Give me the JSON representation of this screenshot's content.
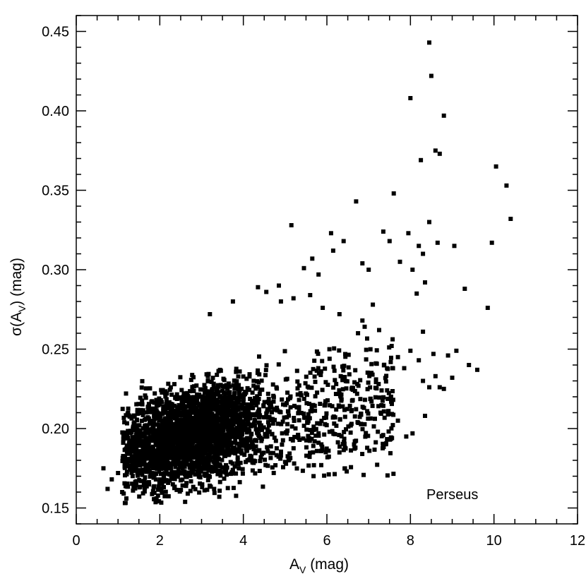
{
  "chart_data": {
    "type": "scatter",
    "title": "",
    "xlabel": "A",
    "xlabel_sub": "V",
    "xlabel_suffix": " (mag)",
    "ylabel_prefix": "σ(A",
    "ylabel_sub": "V",
    "ylabel_suffix": ") (mag)",
    "annotation": "Perseus",
    "xlim": [
      0,
      12
    ],
    "ylim": [
      0.14,
      0.46
    ],
    "xticks": [
      "0",
      "2",
      "4",
      "6",
      "8",
      "10",
      "12"
    ],
    "yticks": [
      "0.15",
      "0.20",
      "0.25",
      "0.30",
      "0.35",
      "0.40",
      "0.45"
    ],
    "marker_color": "#000000",
    "dense_region": {
      "description_free": true,
      "x_center": 2.6,
      "y_center": 0.195,
      "x_spread": 0.9,
      "y_spread": 0.016,
      "count": 2600,
      "corr": 0.35
    },
    "mid_region": {
      "x_range": [
        3.0,
        7.6
      ],
      "y_base_at": [
        [
          3.0,
          0.195
        ],
        [
          7.5,
          0.215
        ]
      ],
      "y_spread": 0.022,
      "count": 700
    },
    "points": [
      [
        0.65,
        0.175
      ],
      [
        0.75,
        0.162
      ],
      [
        0.85,
        0.168
      ],
      [
        1.0,
        0.172
      ],
      [
        1.1,
        0.16
      ],
      [
        1.2,
        0.156
      ],
      [
        5.15,
        0.328
      ],
      [
        5.45,
        0.301
      ],
      [
        5.65,
        0.307
      ],
      [
        5.8,
        0.297
      ],
      [
        6.1,
        0.323
      ],
      [
        6.15,
        0.312
      ],
      [
        6.4,
        0.318
      ],
      [
        6.7,
        0.343
      ],
      [
        6.85,
        0.304
      ],
      [
        7.0,
        0.3
      ],
      [
        7.35,
        0.324
      ],
      [
        7.6,
        0.348
      ],
      [
        7.5,
        0.318
      ],
      [
        7.95,
        0.323
      ],
      [
        8.0,
        0.408
      ],
      [
        8.2,
        0.315
      ],
      [
        8.25,
        0.369
      ],
      [
        8.3,
        0.31
      ],
      [
        8.45,
        0.443
      ],
      [
        8.5,
        0.422
      ],
      [
        8.45,
        0.33
      ],
      [
        8.6,
        0.375
      ],
      [
        8.7,
        0.373
      ],
      [
        8.8,
        0.397
      ],
      [
        8.65,
        0.317
      ],
      [
        9.05,
        0.315
      ],
      [
        9.3,
        0.288
      ],
      [
        9.85,
        0.276
      ],
      [
        9.95,
        0.317
      ],
      [
        10.05,
        0.365
      ],
      [
        10.3,
        0.353
      ],
      [
        10.4,
        0.332
      ],
      [
        8.15,
        0.285
      ],
      [
        8.35,
        0.292
      ],
      [
        8.05,
        0.3
      ],
      [
        7.75,
        0.305
      ],
      [
        4.35,
        0.289
      ],
      [
        4.85,
        0.29
      ],
      [
        4.9,
        0.28
      ],
      [
        5.6,
        0.284
      ],
      [
        3.75,
        0.28
      ],
      [
        3.2,
        0.272
      ],
      [
        4.55,
        0.286
      ],
      [
        5.2,
        0.282
      ],
      [
        5.9,
        0.276
      ],
      [
        6.3,
        0.272
      ],
      [
        6.85,
        0.268
      ],
      [
        7.1,
        0.278
      ],
      [
        7.25,
        0.262
      ],
      [
        7.55,
        0.252
      ],
      [
        7.7,
        0.245
      ],
      [
        7.85,
        0.238
      ],
      [
        8.0,
        0.249
      ],
      [
        8.2,
        0.243
      ],
      [
        8.3,
        0.23
      ],
      [
        8.45,
        0.226
      ],
      [
        8.6,
        0.233
      ],
      [
        8.9,
        0.246
      ],
      [
        9.1,
        0.249
      ],
      [
        9.4,
        0.24
      ],
      [
        9.6,
        0.237
      ],
      [
        8.7,
        0.226
      ],
      [
        8.35,
        0.208
      ],
      [
        9.0,
        0.232
      ],
      [
        6.3,
        0.185
      ],
      [
        4.9,
        0.183
      ],
      [
        5.0,
        0.179
      ],
      [
        4.1,
        0.18
      ],
      [
        3.85,
        0.178
      ],
      [
        3.6,
        0.171
      ],
      [
        3.3,
        0.162
      ],
      [
        8.3,
        0.261
      ],
      [
        8.55,
        0.247
      ],
      [
        8.8,
        0.225
      ],
      [
        7.9,
        0.195
      ],
      [
        8.05,
        0.197
      ],
      [
        7.7,
        0.205
      ],
      [
        6.65,
        0.19
      ]
    ]
  }
}
